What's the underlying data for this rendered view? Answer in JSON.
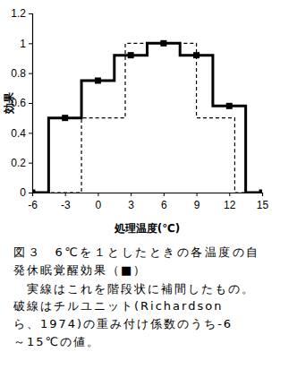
{
  "chart_data": {
    "type": "line",
    "x_label": "処理温度(℃)",
    "y_label": "効果",
    "xlim": [
      -6,
      15
    ],
    "xticks": [
      -6,
      -3,
      0,
      3,
      6,
      9,
      12,
      15
    ],
    "ylim": [
      0,
      1.2
    ],
    "yticks": [
      0,
      0.2,
      0.4,
      0.6,
      0.8,
      1,
      1.2
    ],
    "grid": false,
    "series": [
      {
        "type": "step",
        "color": "#000000",
        "line_style": "solid",
        "x": [
          -6,
          -4.5,
          -1.5,
          1.5,
          4.5,
          7.5,
          10.5,
          13.5,
          15
        ],
        "values": [
          0,
          0.5,
          0.75,
          0.92,
          1,
          0.92,
          0.58,
          0,
          0
        ]
      },
      {
        "type": "scatter",
        "color": "#000000",
        "marker": "square",
        "x": [
          -6,
          -3,
          0,
          3,
          6,
          9,
          12,
          15
        ],
        "values": [
          0,
          0.5,
          0.75,
          0.92,
          1,
          0.92,
          0.58,
          0
        ]
      },
      {
        "type": "step",
        "color": "#000000",
        "line_style": "dashed",
        "x": [
          -6,
          -1.5,
          2.5,
          9,
          12.5,
          15
        ],
        "values": [
          0,
          0.5,
          1,
          0.5,
          0,
          0
        ]
      }
    ],
    "annotations": [
      "図３　6℃を１としたときの各温度の自",
      "発休眠覚醒効果（■）",
      "　実線はこれを階段状に補間したもの。",
      "破線はチルユニット(Richardson",
      "ら、1974)の重み付け係数のうち-6",
      "～15℃の値。"
    ]
  }
}
